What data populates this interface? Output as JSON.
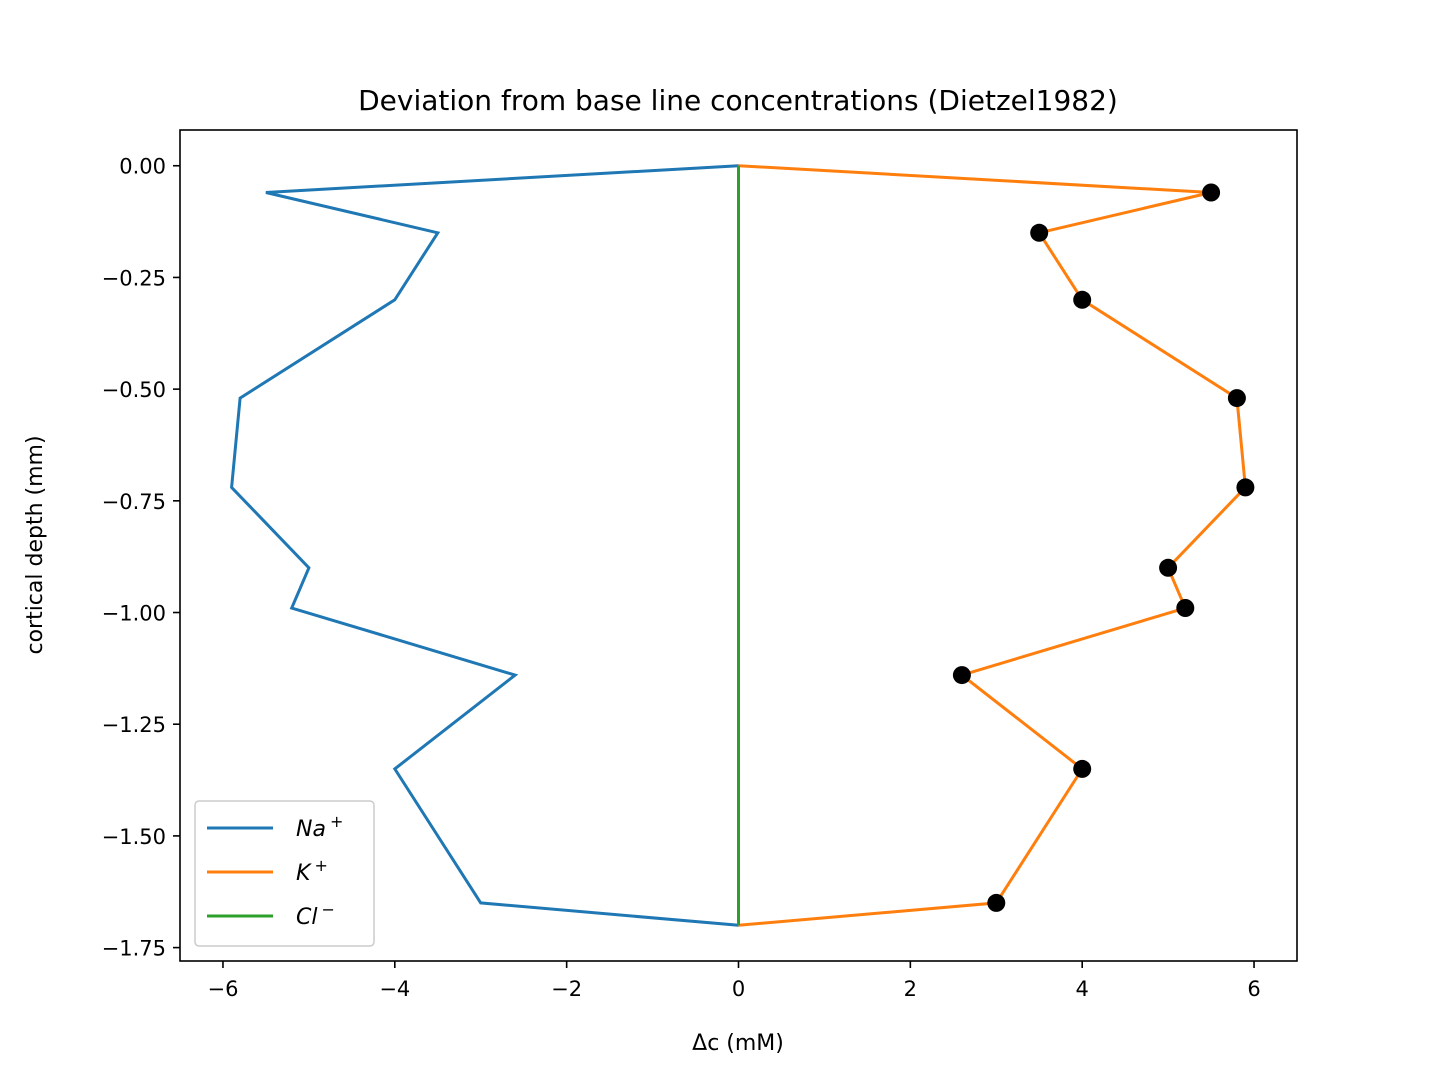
{
  "chart_data": {
    "type": "line",
    "title": "Deviation from base line concentrations (Dietzel1982)",
    "xlabel": "Δc (mM)",
    "ylabel": "cortical depth (mm)",
    "xlim": [
      -6.5,
      6.5
    ],
    "ylim": [
      -1.78,
      0.08
    ],
    "xticks": [
      -6,
      -4,
      -2,
      0,
      2,
      4,
      6
    ],
    "xtick_labels": [
      "−6",
      "−4",
      "−2",
      "0",
      "2",
      "4",
      "6"
    ],
    "yticks": [
      0,
      -0.25,
      -0.5,
      -0.75,
      -1.0,
      -1.25,
      -1.5,
      -1.75
    ],
    "ytick_labels": [
      "0.00",
      "−0.25",
      "−0.50",
      "−0.75",
      "−1.00",
      "−1.25",
      "−1.50",
      "−1.75"
    ],
    "grid": false,
    "legend_position": "lower-left",
    "series": [
      {
        "name": "Na+",
        "color": "#1f77b4",
        "markers": false,
        "points": [
          [
            0.0,
            0.0
          ],
          [
            -5.5,
            -0.06
          ],
          [
            -3.5,
            -0.15
          ],
          [
            -4.0,
            -0.3
          ],
          [
            -5.8,
            -0.52
          ],
          [
            -5.9,
            -0.72
          ],
          [
            -5.0,
            -0.9
          ],
          [
            -5.2,
            -0.99
          ],
          [
            -2.6,
            -1.14
          ],
          [
            -4.0,
            -1.35
          ],
          [
            -3.0,
            -1.65
          ],
          [
            0.0,
            -1.7
          ]
        ]
      },
      {
        "name": "K+",
        "color": "#ff7f0e",
        "markers": false,
        "points": [
          [
            0.0,
            0.0
          ],
          [
            5.5,
            -0.06
          ],
          [
            3.5,
            -0.15
          ],
          [
            4.0,
            -0.3
          ],
          [
            5.8,
            -0.52
          ],
          [
            5.9,
            -0.72
          ],
          [
            5.0,
            -0.9
          ],
          [
            5.2,
            -0.99
          ],
          [
            2.6,
            -1.14
          ],
          [
            4.0,
            -1.35
          ],
          [
            3.0,
            -1.65
          ],
          [
            0.0,
            -1.7
          ]
        ]
      },
      {
        "name": "Cl−",
        "color": "#2ca02c",
        "markers": false,
        "points": [
          [
            0.0,
            0.0
          ],
          [
            0.0,
            -1.7
          ]
        ]
      }
    ],
    "scatter": {
      "color": "#000000",
      "points": [
        [
          5.5,
          -0.06
        ],
        [
          3.5,
          -0.15
        ],
        [
          4.0,
          -0.3
        ],
        [
          5.8,
          -0.52
        ],
        [
          5.9,
          -0.72
        ],
        [
          5.0,
          -0.9
        ],
        [
          5.2,
          -0.99
        ],
        [
          2.6,
          -1.14
        ],
        [
          4.0,
          -1.35
        ],
        [
          3.0,
          -1.65
        ]
      ]
    },
    "legend": [
      {
        "base": "Na",
        "sup": "+",
        "color": "#1f77b4"
      },
      {
        "base": "K",
        "sup": "+",
        "color": "#ff7f0e"
      },
      {
        "base": "Cl",
        "sup": "−",
        "color": "#2ca02c"
      }
    ]
  }
}
